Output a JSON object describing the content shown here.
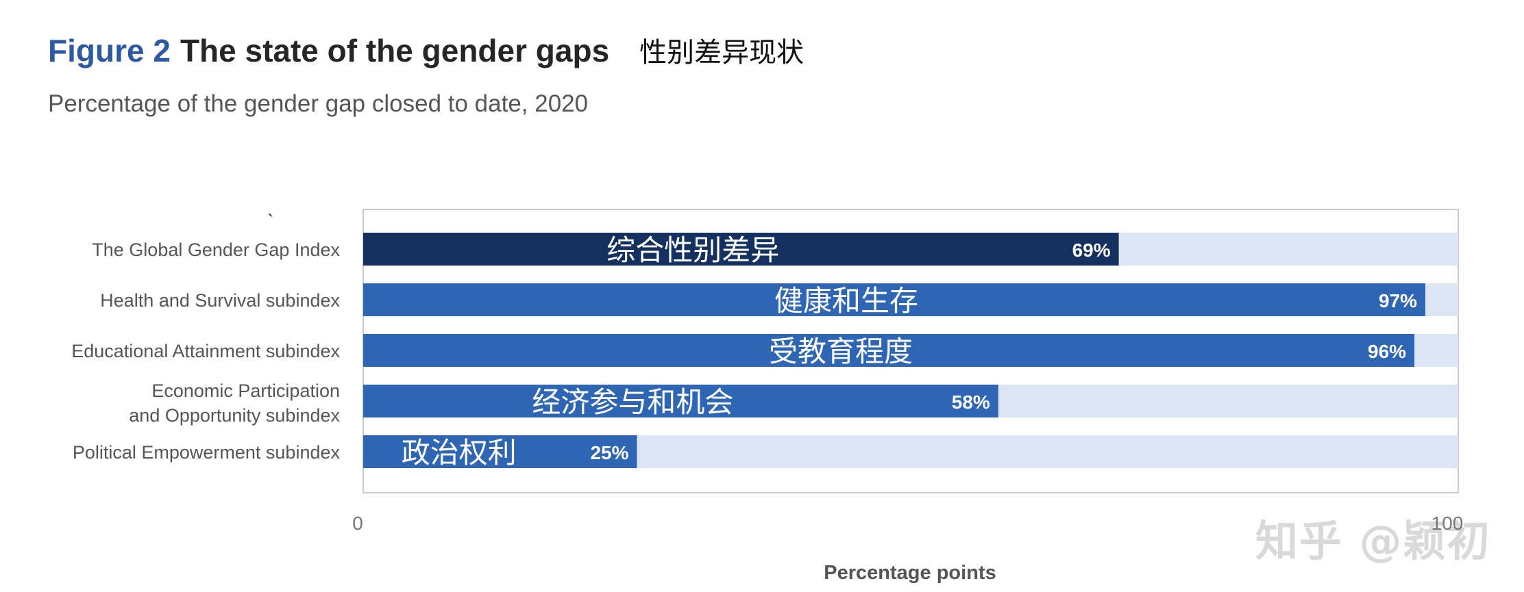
{
  "figure": {
    "label": "Figure 2",
    "title": "The state of the gender gaps",
    "annotation": "性别差异现状",
    "subtitle": "Percentage of the gender gap closed to date, 2020"
  },
  "watermark": "知乎 @颖初",
  "chart_data": {
    "type": "bar",
    "orientation": "horizontal",
    "title": "The state of the gender gaps",
    "subtitle": "Percentage of the gender gap closed to date, 2020",
    "xlabel": "Percentage points",
    "ylabel": "",
    "xlim": [
      0,
      100
    ],
    "x_ticks": [
      "0",
      "100"
    ],
    "grid": false,
    "categories": [
      "The Global Gender Gap Index",
      "Health and Survival subindex",
      "Educational Attainment subindex",
      "Economic Participation and Opportunity subindex",
      "Political Empowerment subindex"
    ],
    "category_lines": [
      [
        "The Global Gender Gap Index"
      ],
      [
        "Health and Survival subindex"
      ],
      [
        "Educational Attainment subindex"
      ],
      [
        "Economic Participation",
        "and Opportunity subindex"
      ],
      [
        "Political Empowerment subindex"
      ]
    ],
    "chinese_labels": [
      "综合性别差异",
      "健康和生存",
      "受教育程度",
      "经济参与和机会",
      "政治权利"
    ],
    "values": [
      69,
      97,
      96,
      58,
      25
    ],
    "value_labels": [
      "69%",
      "97%",
      "96%",
      "58%",
      "25%"
    ],
    "colors": {
      "index_bar": "#13305e",
      "subindex_bar": "#2e66b3",
      "track": "#dbe5f3",
      "frame": "#b8b8b8",
      "category_text": "#555555",
      "value_text": "#ffffff",
      "axis_text": "#777777",
      "xlabel_text": "#555555"
    }
  }
}
